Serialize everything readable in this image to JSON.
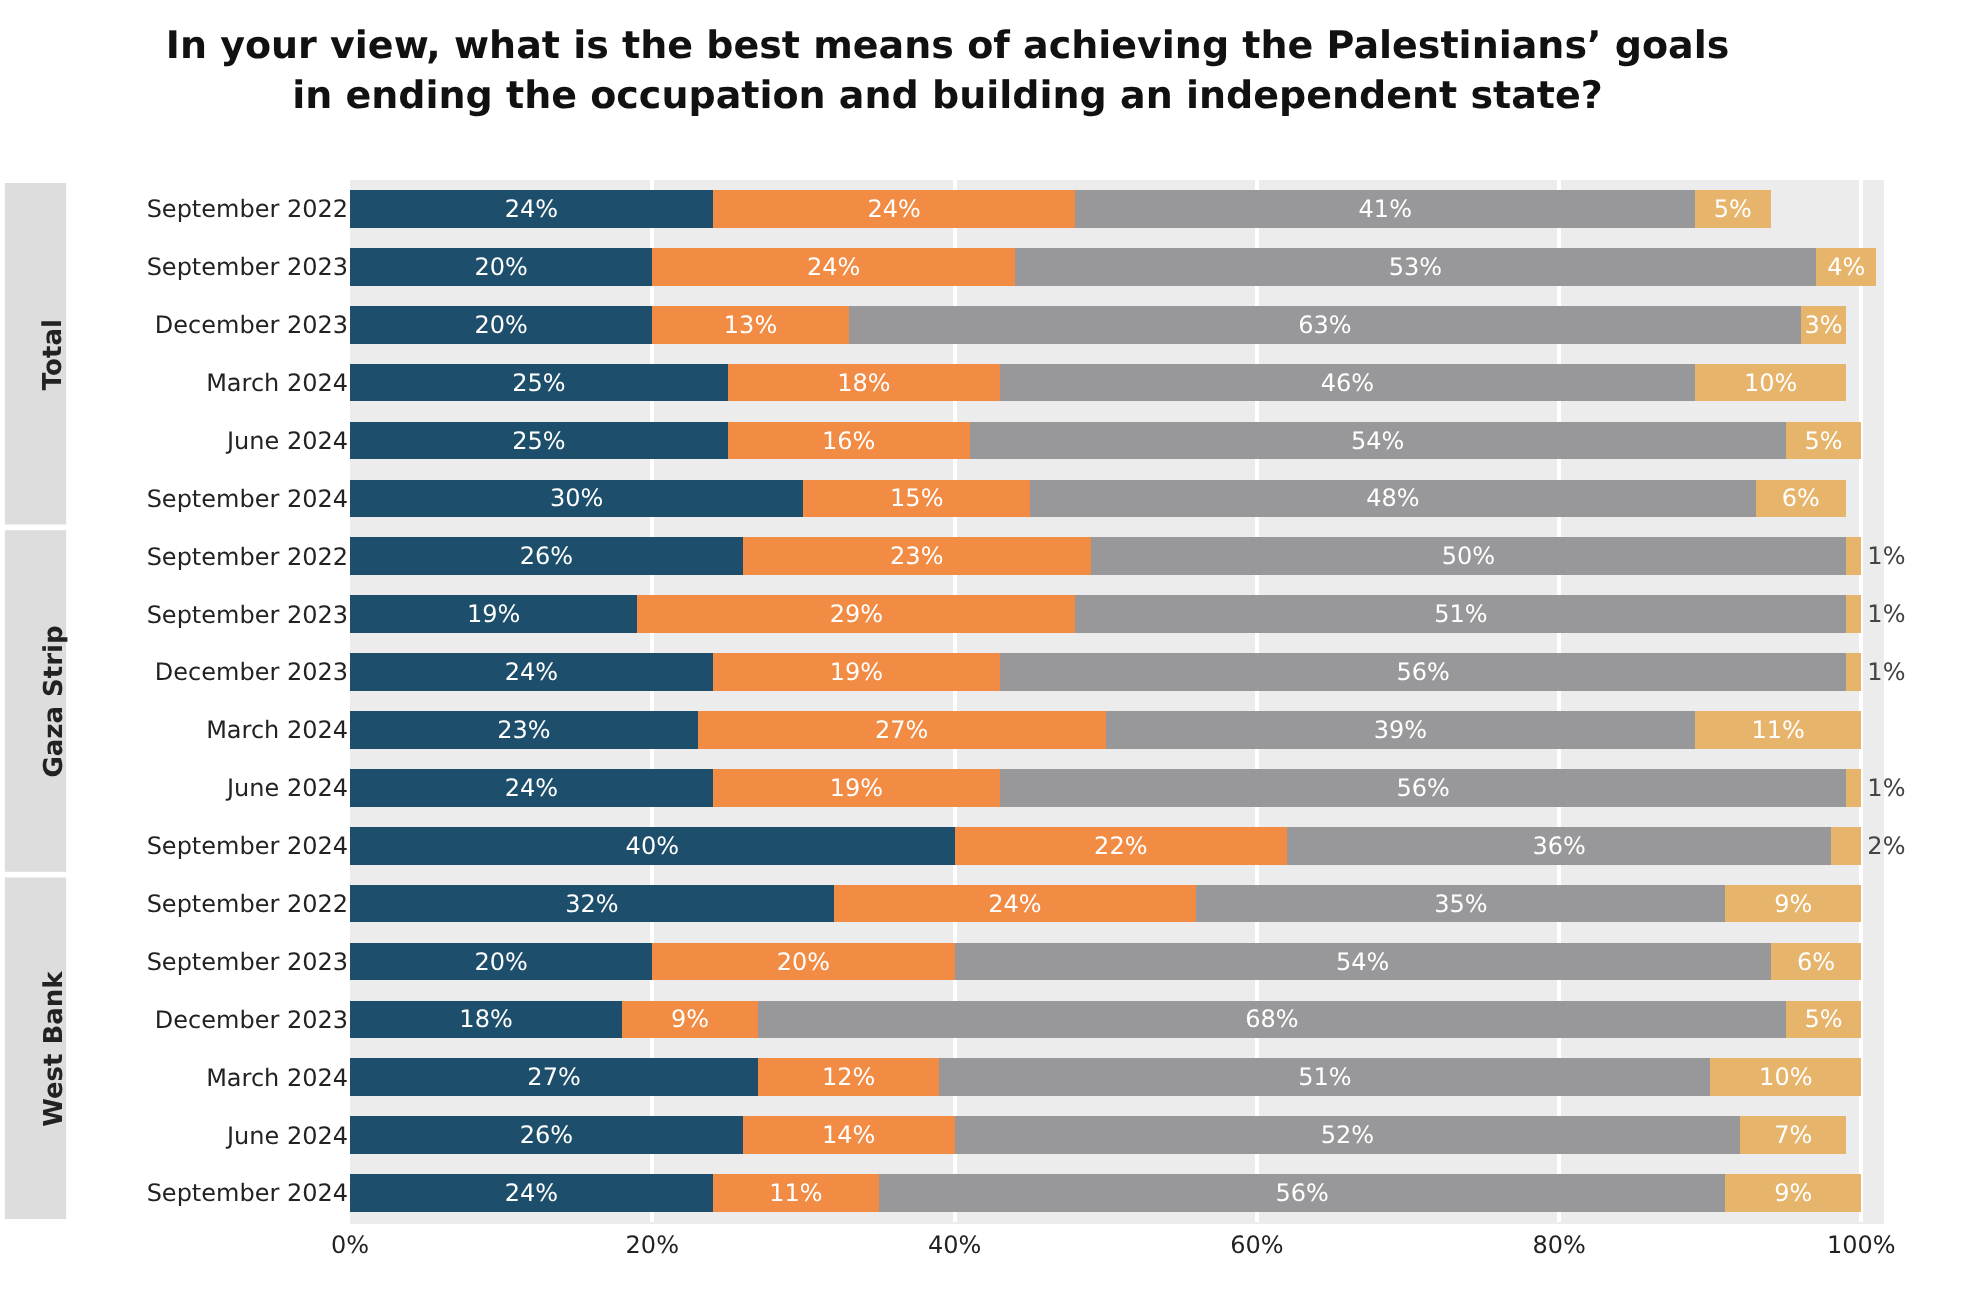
{
  "chart_data": {
    "type": "bar",
    "orientation": "horizontal",
    "stacked": true,
    "title": "In your view, what is the best means of achieving the Palestinians’ goals\nin ending the occupation and building an independent state?",
    "categories": [
      "September 2022",
      "September 2023",
      "December 2023",
      "March 2024",
      "June 2024",
      "September 2024",
      "September 2022",
      "September 2023",
      "December 2023",
      "March 2024",
      "June 2024",
      "September 2024",
      "September 2022",
      "September 2023",
      "December 2023",
      "March 2024",
      "June 2024",
      "September 2024"
    ],
    "series": [
      {
        "color": "#1d4e6b",
        "values": [
          24,
          20,
          20,
          25,
          25,
          30,
          26,
          19,
          24,
          23,
          24,
          40,
          32,
          20,
          18,
          27,
          26,
          24
        ],
        "value_labels": [
          "24%",
          "20%",
          "20%",
          "25%",
          "25%",
          "30%",
          "26%",
          "19%",
          "24%",
          "23%",
          "24%",
          "40%",
          "32%",
          "20%",
          "18%",
          "27%",
          "26%",
          "24%"
        ]
      },
      {
        "color": "#f28c45",
        "values": [
          24,
          24,
          13,
          18,
          16,
          15,
          23,
          29,
          19,
          27,
          19,
          22,
          24,
          20,
          9,
          12,
          14,
          11
        ],
        "value_labels": [
          "24%",
          "24%",
          "13%",
          "18%",
          "16%",
          "15%",
          "23%",
          "29%",
          "19%",
          "27%",
          "19%",
          "22%",
          "24%",
          "20%",
          "9%",
          "12%",
          "14%",
          "11%"
        ]
      },
      {
        "color": "#98989a",
        "values": [
          41,
          53,
          63,
          46,
          54,
          48,
          50,
          51,
          56,
          39,
          56,
          36,
          35,
          54,
          68,
          51,
          52,
          56
        ],
        "value_labels": [
          "41%",
          "53%",
          "63%",
          "46%",
          "54%",
          "48%",
          "50%",
          "51%",
          "56%",
          "39%",
          "56%",
          "36%",
          "35%",
          "54%",
          "68%",
          "51%",
          "52%",
          "56%"
        ]
      },
      {
        "color": "#e6b56b",
        "values": [
          5,
          4,
          3,
          10,
          5,
          6,
          1,
          1,
          1,
          11,
          1,
          2,
          9,
          6,
          5,
          10,
          7,
          9
        ],
        "value_labels": [
          "5%",
          "4%",
          "3%",
          "10%",
          "5%",
          "6%",
          "1%",
          "1%",
          "1%",
          "11%",
          "1%",
          "2%",
          "9%",
          "6%",
          "5%",
          "10%",
          "7%",
          "9%"
        ]
      }
    ],
    "annotations": [
      "Total",
      "Gaza Strip",
      "West Bank"
    ],
    "xlim": [
      0,
      101.5
    ],
    "xticks": [
      {
        "value": 0,
        "label": "0%"
      },
      {
        "value": 20,
        "label": "20%"
      },
      {
        "value": 40,
        "label": "40%"
      },
      {
        "value": 60,
        "label": "60%"
      },
      {
        "value": 80,
        "label": "80%"
      },
      {
        "value": 100,
        "label": "100%"
      }
    ],
    "grid": "x"
  }
}
